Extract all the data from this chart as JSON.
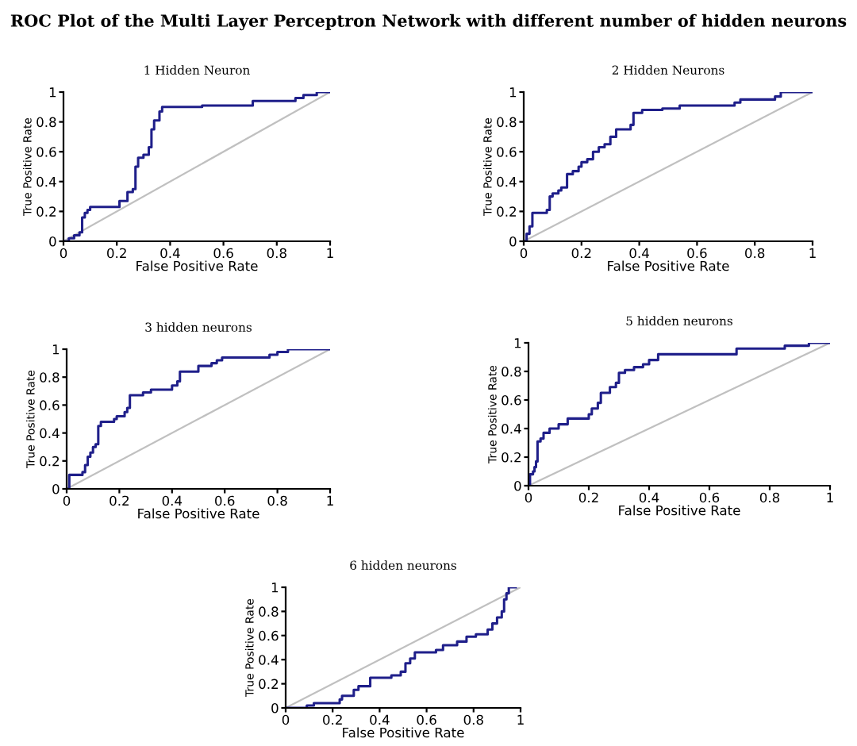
{
  "chart_data": [
    {
      "type": "step",
      "title": "1 Hidden Neuron",
      "xlabel": "False Positive Rate",
      "ylabel": "True Positive Rate",
      "xlim": [
        0,
        1
      ],
      "ylim": [
        0,
        1
      ],
      "xticks": [
        0,
        0.2,
        0.4,
        0.6,
        0.8,
        1
      ],
      "yticks": [
        0,
        0.2,
        0.4,
        0.6,
        0.8,
        1
      ],
      "annotations": [
        "ROC Plot of the Multi Layer Perceptron Network with different number of hidden neurons"
      ],
      "series": [
        {
          "type": "line",
          "color": "#c0c0c0",
          "x": [
            0,
            1
          ],
          "values": [
            0,
            1
          ]
        },
        {
          "color": "#1f1f8a",
          "x": [
            0,
            0.02,
            0.04,
            0.06,
            0.07,
            0.08,
            0.09,
            0.1,
            0.21,
            0.24,
            0.26,
            0.27,
            0.28,
            0.3,
            0.32,
            0.33,
            0.34,
            0.36,
            0.37,
            0.52,
            0.71,
            0.87,
            0.9,
            0.95,
            1
          ],
          "values": [
            0,
            0.02,
            0.04,
            0.06,
            0.16,
            0.19,
            0.21,
            0.23,
            0.27,
            0.33,
            0.35,
            0.5,
            0.56,
            0.58,
            0.63,
            0.75,
            0.81,
            0.87,
            0.9,
            0.91,
            0.94,
            0.96,
            0.98,
            1,
            1
          ]
        }
      ]
    },
    {
      "type": "step",
      "title": "2 Hidden Neurons",
      "xlabel": "False Positive Rate",
      "ylabel": "True Positive Rate",
      "xlim": [
        0,
        1
      ],
      "ylim": [
        0,
        1
      ],
      "xticks": [
        0,
        0.2,
        0.4,
        0.6,
        0.8,
        1
      ],
      "yticks": [
        0,
        0.2,
        0.4,
        0.6,
        0.8,
        1
      ],
      "series": [
        {
          "type": "line",
          "color": "#c0c0c0",
          "x": [
            0,
            1
          ],
          "values": [
            0,
            1
          ]
        },
        {
          "color": "#1f1f8a",
          "x": [
            0,
            0.01,
            0.02,
            0.03,
            0.08,
            0.09,
            0.1,
            0.12,
            0.13,
            0.15,
            0.17,
            0.19,
            0.2,
            0.22,
            0.24,
            0.26,
            0.28,
            0.3,
            0.32,
            0.37,
            0.38,
            0.41,
            0.48,
            0.54,
            0.73,
            0.75,
            0.87,
            0.89,
            1
          ],
          "values": [
            0,
            0.05,
            0.1,
            0.19,
            0.21,
            0.3,
            0.32,
            0.34,
            0.36,
            0.45,
            0.47,
            0.5,
            0.53,
            0.55,
            0.6,
            0.63,
            0.65,
            0.7,
            0.75,
            0.78,
            0.86,
            0.88,
            0.89,
            0.91,
            0.93,
            0.95,
            0.97,
            1,
            1
          ]
        }
      ]
    },
    {
      "type": "step",
      "title": "3 hidden neurons",
      "xlabel": "False Positive Rate",
      "ylabel": "True Positive Rate",
      "xlim": [
        0,
        1
      ],
      "ylim": [
        0,
        1
      ],
      "xticks": [
        0,
        0.2,
        0.4,
        0.6,
        0.8,
        1
      ],
      "yticks": [
        0,
        0.2,
        0.4,
        0.6,
        0.8,
        1
      ],
      "series": [
        {
          "type": "line",
          "color": "#c0c0c0",
          "x": [
            0,
            1
          ],
          "values": [
            0,
            1
          ]
        },
        {
          "color": "#1f1f8a",
          "x": [
            0,
            0.01,
            0.06,
            0.07,
            0.08,
            0.09,
            0.1,
            0.11,
            0.12,
            0.13,
            0.18,
            0.19,
            0.22,
            0.23,
            0.24,
            0.29,
            0.32,
            0.4,
            0.42,
            0.43,
            0.5,
            0.55,
            0.57,
            0.59,
            0.77,
            0.8,
            0.84,
            1
          ],
          "values": [
            0,
            0.1,
            0.12,
            0.17,
            0.23,
            0.26,
            0.3,
            0.32,
            0.45,
            0.48,
            0.5,
            0.52,
            0.55,
            0.58,
            0.67,
            0.69,
            0.71,
            0.74,
            0.77,
            0.84,
            0.88,
            0.9,
            0.92,
            0.94,
            0.96,
            0.98,
            1,
            1
          ]
        }
      ]
    },
    {
      "type": "step",
      "title": "5 hidden neurons",
      "xlabel": "False Positive Rate",
      "ylabel": "True Positive Rate",
      "xlim": [
        0,
        1
      ],
      "ylim": [
        0,
        1
      ],
      "xticks": [
        0,
        0.2,
        0.4,
        0.6,
        0.8,
        1
      ],
      "yticks": [
        0,
        0.2,
        0.4,
        0.6,
        0.8,
        1
      ],
      "series": [
        {
          "type": "line",
          "color": "#c0c0c0",
          "x": [
            0,
            1
          ],
          "values": [
            0,
            1
          ]
        },
        {
          "color": "#1f1f8a",
          "x": [
            0,
            0.005,
            0.015,
            0.02,
            0.025,
            0.03,
            0.04,
            0.05,
            0.07,
            0.1,
            0.13,
            0.2,
            0.21,
            0.23,
            0.24,
            0.27,
            0.29,
            0.3,
            0.32,
            0.35,
            0.38,
            0.4,
            0.43,
            0.69,
            0.85,
            0.93,
            1
          ],
          "values": [
            0,
            0.08,
            0.1,
            0.13,
            0.17,
            0.31,
            0.33,
            0.37,
            0.4,
            0.43,
            0.47,
            0.5,
            0.54,
            0.58,
            0.65,
            0.69,
            0.72,
            0.79,
            0.81,
            0.83,
            0.85,
            0.88,
            0.92,
            0.96,
            0.98,
            1,
            1
          ]
        }
      ]
    },
    {
      "type": "step",
      "title": "6 hidden neurons",
      "xlabel": "False Positive Rate",
      "ylabel": "True Positive Rate",
      "xlim": [
        0,
        1
      ],
      "ylim": [
        0,
        1
      ],
      "xticks": [
        0,
        0.2,
        0.4,
        0.6,
        0.8,
        1
      ],
      "yticks": [
        0,
        0.2,
        0.4,
        0.6,
        0.8,
        1
      ],
      "series": [
        {
          "type": "line",
          "color": "#c0c0c0",
          "x": [
            0,
            1
          ],
          "values": [
            0,
            1
          ]
        },
        {
          "color": "#1f1f8a",
          "x": [
            0,
            0.09,
            0.12,
            0.23,
            0.24,
            0.29,
            0.31,
            0.36,
            0.45,
            0.49,
            0.51,
            0.53,
            0.55,
            0.64,
            0.67,
            0.73,
            0.77,
            0.81,
            0.86,
            0.88,
            0.9,
            0.92,
            0.93,
            0.94,
            0.95,
            0.98
          ],
          "values": [
            0,
            0.02,
            0.04,
            0.07,
            0.1,
            0.15,
            0.18,
            0.25,
            0.27,
            0.3,
            0.37,
            0.41,
            0.46,
            0.48,
            0.52,
            0.55,
            0.59,
            0.61,
            0.65,
            0.7,
            0.75,
            0.8,
            0.9,
            0.95,
            1,
            1
          ]
        }
      ]
    }
  ]
}
